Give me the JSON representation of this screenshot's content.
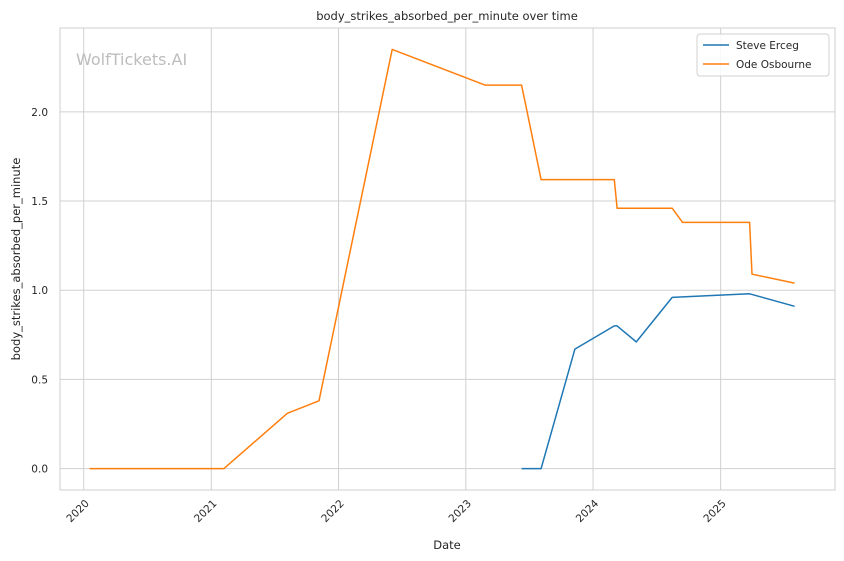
{
  "chart_data": {
    "type": "line",
    "title": "body_strikes_absorbed_per_minute over time",
    "xlabel": "Date",
    "ylabel": "body_strikes_absorbed_per_minute",
    "watermark": "WolfTickets.AI",
    "xlim": [
      "2019-10-25",
      "2025-11-25"
    ],
    "ylim": [
      -0.12,
      2.47
    ],
    "x_ticks": [
      "2020",
      "2021",
      "2022",
      "2023",
      "2024",
      "2025"
    ],
    "y_ticks": [
      "0.0",
      "0.5",
      "1.0",
      "1.5",
      "2.0"
    ],
    "grid": true,
    "legend_position": "top-right",
    "series": [
      {
        "name": "Steve Erceg",
        "color": "#1f77b4",
        "points": [
          [
            "2023-06-10",
            0.0
          ],
          [
            "2023-08-05",
            0.0
          ],
          [
            "2023-11-10",
            0.67
          ],
          [
            "2024-03-02",
            0.8
          ],
          [
            "2024-03-10",
            0.8
          ],
          [
            "2024-05-04",
            0.71
          ],
          [
            "2024-08-15",
            0.96
          ],
          [
            "2025-03-25",
            0.98
          ],
          [
            "2025-08-01",
            0.91
          ]
        ]
      },
      {
        "name": "Ode Osbourne",
        "color": "#ff7f0e",
        "points": [
          [
            "2020-01-18",
            0.0
          ],
          [
            "2021-02-06",
            0.0
          ],
          [
            "2021-08-07",
            0.31
          ],
          [
            "2021-11-06",
            0.38
          ],
          [
            "2022-06-04",
            2.35
          ],
          [
            "2023-02-25",
            2.15
          ],
          [
            "2023-06-10",
            2.15
          ],
          [
            "2023-08-05",
            1.62
          ],
          [
            "2024-03-02",
            1.62
          ],
          [
            "2024-03-10",
            1.46
          ],
          [
            "2024-08-15",
            1.46
          ],
          [
            "2024-09-14",
            1.38
          ],
          [
            "2025-03-25",
            1.38
          ],
          [
            "2025-04-01",
            1.09
          ],
          [
            "2025-08-01",
            1.04
          ]
        ]
      }
    ]
  }
}
